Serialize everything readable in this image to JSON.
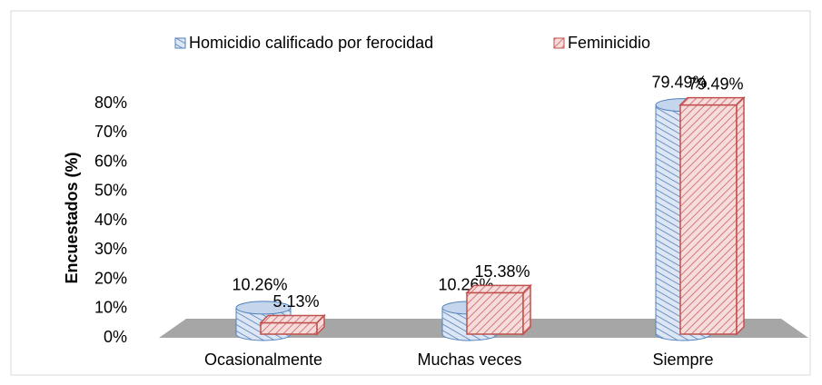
{
  "chart_data": {
    "type": "bar3d",
    "y_label": "Encuestados (%)",
    "categories": [
      "Ocasionalmente",
      "Muchas veces",
      "Siempre"
    ],
    "series": [
      {
        "name": "Homicidio calificado por ferocidad",
        "color": "#4f81bd",
        "values": [
          10.26,
          10.26,
          79.49
        ],
        "value_labels": [
          "10.26%",
          "10.26%",
          "79.49%"
        ]
      },
      {
        "name": "Feminicidio",
        "color": "#c0504d",
        "values": [
          5.13,
          15.38,
          79.49
        ],
        "value_labels": [
          "5.13%",
          "15.38%",
          "79.49%"
        ]
      }
    ],
    "ylim": [
      0,
      80
    ],
    "yticks": [
      {
        "value": 0,
        "label": "0%"
      },
      {
        "value": 10,
        "label": "10%"
      },
      {
        "value": 20,
        "label": "20%"
      },
      {
        "value": 30,
        "label": "30%"
      },
      {
        "value": 40,
        "label": "40%"
      },
      {
        "value": 50,
        "label": "50%"
      },
      {
        "value": 60,
        "label": "60%"
      },
      {
        "value": 70,
        "label": "70%"
      },
      {
        "value": 80,
        "label": "80%"
      }
    ],
    "legend": "top",
    "grid": false
  }
}
